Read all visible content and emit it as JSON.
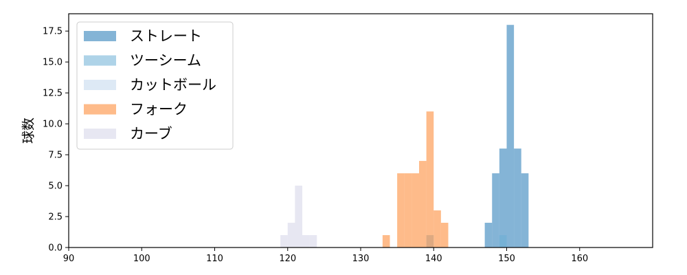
{
  "chart_data": {
    "type": "histogram",
    "ylabel": "球数",
    "xlim": [
      90,
      170
    ],
    "ylim": [
      0,
      18.9
    ],
    "xticks": [
      90,
      100,
      110,
      120,
      130,
      140,
      150,
      160
    ],
    "yticks": [
      0.0,
      2.5,
      5.0,
      7.5,
      10.0,
      12.5,
      15.0,
      17.5
    ],
    "ytick_labels": [
      "0.0",
      "2.5",
      "5.0",
      "7.5",
      "10.0",
      "12.5",
      "15.0",
      "17.5"
    ],
    "grid": false,
    "legend_position": "upper-left",
    "series": [
      {
        "name": "ストレート",
        "color": "#1f77b4",
        "opacity": 0.55,
        "bins": [
          {
            "x0": 147,
            "x1": 148,
            "count": 2
          },
          {
            "x0": 148,
            "x1": 149,
            "count": 6
          },
          {
            "x0": 149,
            "x1": 150,
            "count": 8
          },
          {
            "x0": 150,
            "x1": 151,
            "count": 18
          },
          {
            "x0": 151,
            "x1": 152,
            "count": 8
          },
          {
            "x0": 152,
            "x1": 153,
            "count": 6
          }
        ]
      },
      {
        "name": "ツーシーム",
        "color": "#6baed6",
        "opacity": 0.55,
        "bins": [
          {
            "x0": 139,
            "x1": 140,
            "count": 1
          },
          {
            "x0": 149,
            "x1": 150,
            "count": 1
          }
        ]
      },
      {
        "name": "カットボール",
        "color": "#c6dbef",
        "opacity": 0.6,
        "bins": []
      },
      {
        "name": "フォーク",
        "color": "#fd8d3c",
        "opacity": 0.6,
        "bins": [
          {
            "x0": 133,
            "x1": 134,
            "count": 1
          },
          {
            "x0": 135,
            "x1": 136,
            "count": 6
          },
          {
            "x0": 136,
            "x1": 137,
            "count": 6
          },
          {
            "x0": 137,
            "x1": 138,
            "count": 6
          },
          {
            "x0": 138,
            "x1": 139,
            "count": 7
          },
          {
            "x0": 139,
            "x1": 140,
            "count": 11
          },
          {
            "x0": 140,
            "x1": 141,
            "count": 3
          },
          {
            "x0": 141,
            "x1": 142,
            "count": 2
          }
        ]
      },
      {
        "name": "カーブ",
        "color": "#dadaeb",
        "opacity": 0.65,
        "bins": [
          {
            "x0": 119,
            "x1": 120,
            "count": 1
          },
          {
            "x0": 120,
            "x1": 121,
            "count": 2
          },
          {
            "x0": 121,
            "x1": 122,
            "count": 5
          },
          {
            "x0": 122,
            "x1": 123,
            "count": 1
          },
          {
            "x0": 123,
            "x1": 124,
            "count": 1
          }
        ]
      }
    ]
  }
}
